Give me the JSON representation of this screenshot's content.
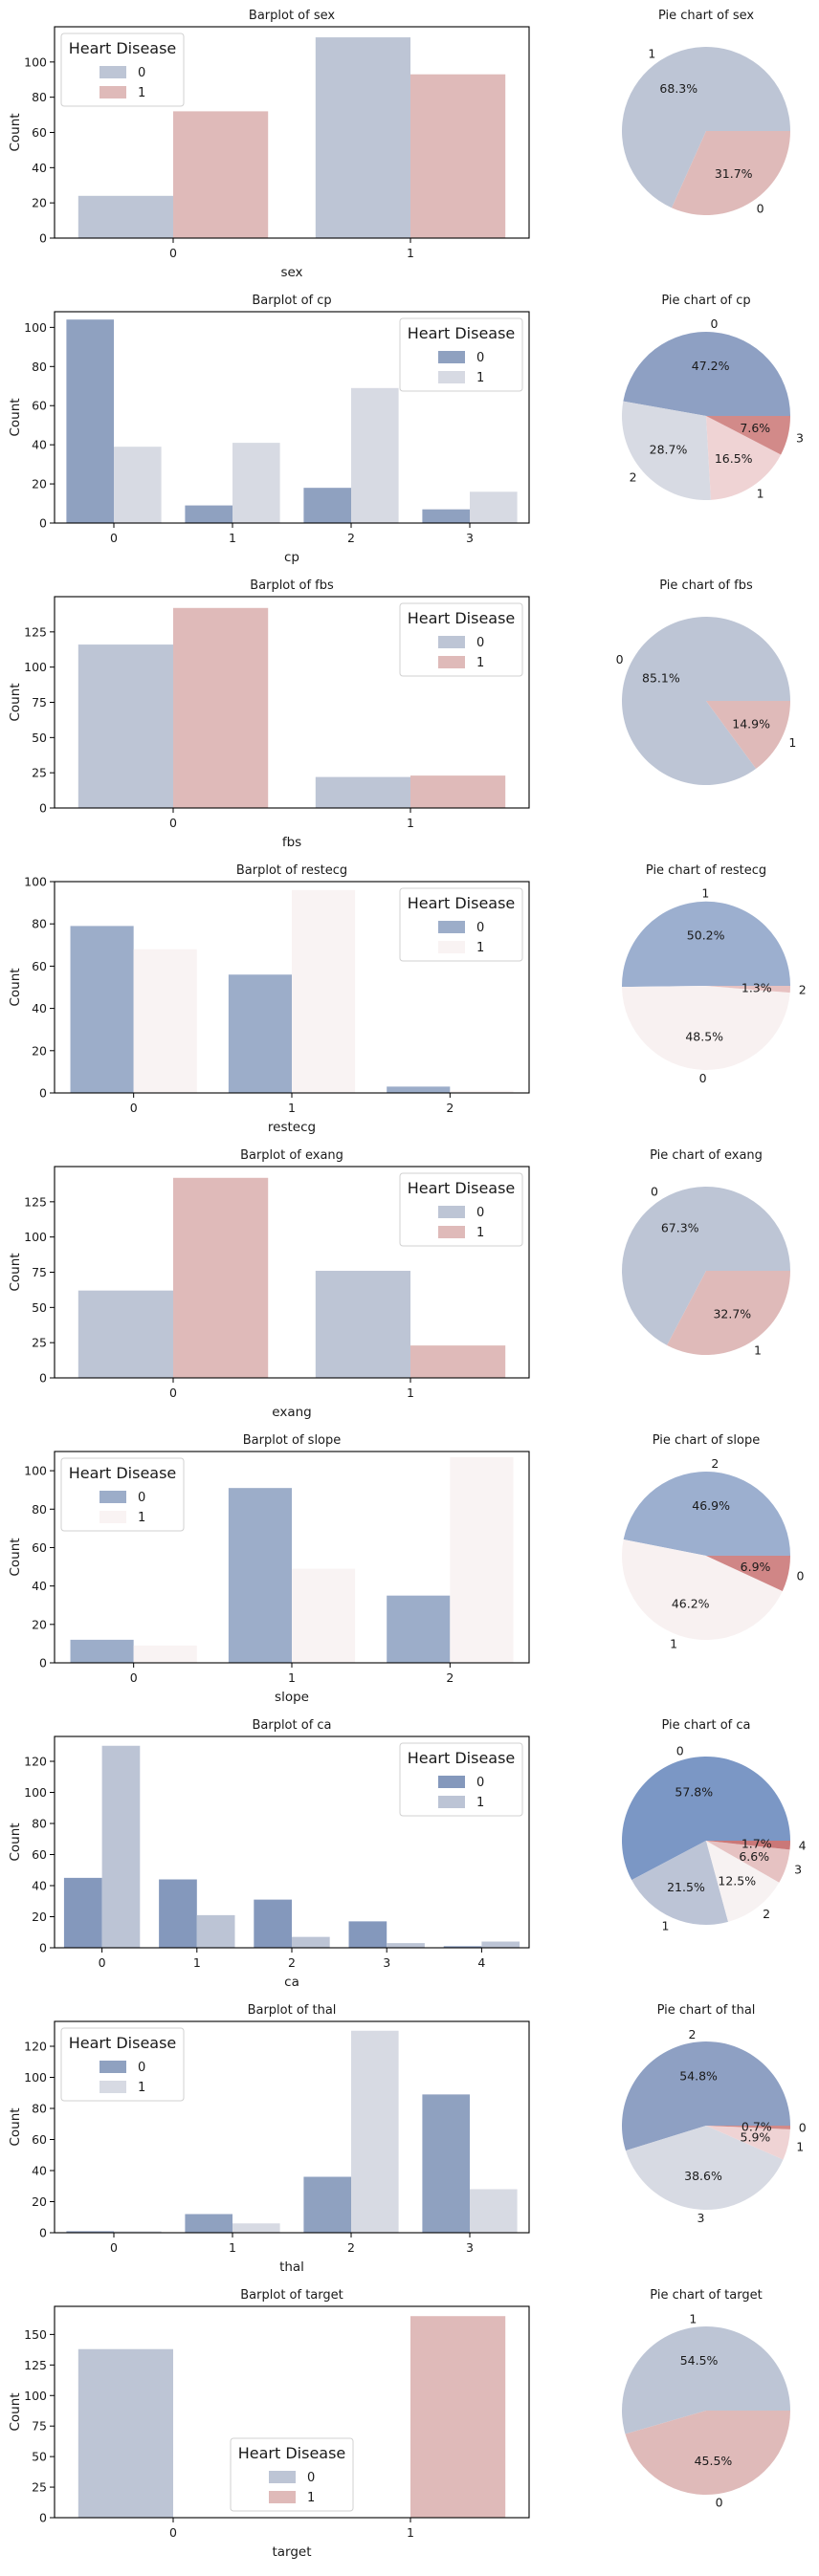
{
  "chart_data": [
    {
      "type": "bar",
      "title": "Barplot of sex",
      "xlabel": "sex",
      "ylabel": "Count",
      "categories": [
        "0",
        "1"
      ],
      "ylim": [
        0,
        120
      ],
      "yticks": [
        0,
        20,
        40,
        60,
        80,
        100
      ],
      "legend": {
        "title": "Heart Disease",
        "placement": "upper-left"
      },
      "series": [
        {
          "name": "0",
          "values": [
            24,
            114
          ],
          "color": "#bdc5d5"
        },
        {
          "name": "1",
          "values": [
            72,
            93
          ],
          "color": "#dfbab9"
        }
      ],
      "pie": {
        "type": "pie",
        "title": "Pie chart of sex",
        "slices": [
          {
            "label": "1",
            "value": 68.3,
            "pct_label": "68.3%",
            "color": "#bdc5d5"
          },
          {
            "label": "0",
            "value": 31.7,
            "pct_label": "31.7%",
            "color": "#dfbab9"
          }
        ]
      }
    },
    {
      "type": "bar",
      "title": "Barplot of cp",
      "xlabel": "cp",
      "ylabel": "Count",
      "categories": [
        "0",
        "1",
        "2",
        "3"
      ],
      "ylim": [
        0,
        108
      ],
      "yticks": [
        0,
        20,
        40,
        60,
        80,
        100
      ],
      "legend": {
        "title": "Heart Disease",
        "placement": "upper-right"
      },
      "series": [
        {
          "name": "0",
          "values": [
            104,
            9,
            18,
            7
          ],
          "color": "#8fa1c0"
        },
        {
          "name": "1",
          "values": [
            39,
            41,
            69,
            16
          ],
          "color": "#d7dae3"
        }
      ],
      "pie": {
        "type": "pie",
        "title": "Pie chart of cp",
        "slices": [
          {
            "label": "0",
            "value": 47.2,
            "pct_label": "47.2%",
            "color": "#8ea0c3"
          },
          {
            "label": "2",
            "value": 28.7,
            "pct_label": "28.7%",
            "color": "#d7dae3"
          },
          {
            "label": "1",
            "value": 16.5,
            "pct_label": "16.5%",
            "color": "#efd3d4"
          },
          {
            "label": "3",
            "value": 7.6,
            "pct_label": "7.6%",
            "color": "#d28a89"
          }
        ]
      }
    },
    {
      "type": "bar",
      "title": "Barplot of fbs",
      "xlabel": "fbs",
      "ylabel": "Count",
      "categories": [
        "0",
        "1"
      ],
      "ylim": [
        0,
        150
      ],
      "yticks": [
        0,
        25,
        50,
        75,
        100,
        125
      ],
      "legend": {
        "title": "Heart Disease",
        "placement": "upper-right"
      },
      "series": [
        {
          "name": "0",
          "values": [
            116,
            22
          ],
          "color": "#bdc5d5"
        },
        {
          "name": "1",
          "values": [
            142,
            23
          ],
          "color": "#dfbab9"
        }
      ],
      "pie": {
        "type": "pie",
        "title": "Pie chart of fbs",
        "slices": [
          {
            "label": "0",
            "value": 85.1,
            "pct_label": "85.1%",
            "color": "#bdc5d5"
          },
          {
            "label": "1",
            "value": 14.9,
            "pct_label": "14.9%",
            "color": "#dfbab9"
          }
        ]
      }
    },
    {
      "type": "bar",
      "title": "Barplot of restecg",
      "xlabel": "restecg",
      "ylabel": "Count",
      "categories": [
        "0",
        "1",
        "2"
      ],
      "ylim": [
        0,
        100
      ],
      "yticks": [
        0,
        20,
        40,
        60,
        80,
        100
      ],
      "legend": {
        "title": "Heart Disease",
        "placement": "upper-right"
      },
      "series": [
        {
          "name": "0",
          "values": [
            79,
            56,
            3
          ],
          "color": "#9cadc9"
        },
        {
          "name": "1",
          "values": [
            68,
            96,
            1
          ],
          "color": "#f9f3f3"
        }
      ],
      "pie": {
        "type": "pie",
        "title": "Pie chart of restecg",
        "slices": [
          {
            "label": "1",
            "value": 50.2,
            "pct_label": "50.2%",
            "color": "#9cafcf"
          },
          {
            "label": "0",
            "value": 48.5,
            "pct_label": "48.5%",
            "color": "#f8f1f1"
          },
          {
            "label": "2",
            "value": 1.3,
            "pct_label": "1.3%",
            "color": "#e7c1c1"
          }
        ]
      }
    },
    {
      "type": "bar",
      "title": "Barplot of exang",
      "xlabel": "exang",
      "ylabel": "Count",
      "categories": [
        "0",
        "1"
      ],
      "ylim": [
        0,
        150
      ],
      "yticks": [
        0,
        25,
        50,
        75,
        100,
        125
      ],
      "legend": {
        "title": "Heart Disease",
        "placement": "upper-right"
      },
      "series": [
        {
          "name": "0",
          "values": [
            62,
            76
          ],
          "color": "#bdc5d5"
        },
        {
          "name": "1",
          "values": [
            142,
            23
          ],
          "color": "#dfbab9"
        }
      ],
      "pie": {
        "type": "pie",
        "title": "Pie chart of exang",
        "slices": [
          {
            "label": "0",
            "value": 67.3,
            "pct_label": "67.3%",
            "color": "#bdc5d5"
          },
          {
            "label": "1",
            "value": 32.7,
            "pct_label": "32.7%",
            "color": "#dfbab9"
          }
        ]
      }
    },
    {
      "type": "bar",
      "title": "Barplot of slope",
      "xlabel": "slope",
      "ylabel": "Count",
      "categories": [
        "0",
        "1",
        "2"
      ],
      "ylim": [
        0,
        110
      ],
      "yticks": [
        0,
        20,
        40,
        60,
        80,
        100
      ],
      "legend": {
        "title": "Heart Disease",
        "placement": "upper-left"
      },
      "series": [
        {
          "name": "0",
          "values": [
            12,
            91,
            35
          ],
          "color": "#9cadc9"
        },
        {
          "name": "1",
          "values": [
            9,
            49,
            107
          ],
          "color": "#f9f3f3"
        }
      ],
      "pie": {
        "type": "pie",
        "title": "Pie chart of slope",
        "slices": [
          {
            "label": "2",
            "value": 46.9,
            "pct_label": "46.9%",
            "color": "#9cafcf"
          },
          {
            "label": "1",
            "value": 46.2,
            "pct_label": "46.2%",
            "color": "#f8f1f1"
          },
          {
            "label": "0",
            "value": 6.9,
            "pct_label": "6.9%",
            "color": "#d08686"
          }
        ]
      }
    },
    {
      "type": "bar",
      "title": "Barplot of ca",
      "xlabel": "ca",
      "ylabel": "Count",
      "categories": [
        "0",
        "1",
        "2",
        "3",
        "4"
      ],
      "ylim": [
        0,
        136
      ],
      "yticks": [
        0,
        20,
        40,
        60,
        80,
        100,
        120
      ],
      "legend": {
        "title": "Heart Disease",
        "placement": "upper-right"
      },
      "series": [
        {
          "name": "0",
          "values": [
            45,
            44,
            31,
            17,
            1
          ],
          "color": "#8498bc"
        },
        {
          "name": "1",
          "values": [
            130,
            21,
            7,
            3,
            4
          ],
          "color": "#bcc4d5"
        }
      ],
      "pie": {
        "type": "pie",
        "title": "Pie chart of ca",
        "slices": [
          {
            "label": "0",
            "value": 57.8,
            "pct_label": "57.8%",
            "color": "#7b97c5"
          },
          {
            "label": "1",
            "value": 21.5,
            "pct_label": "21.5%",
            "color": "#bcc4d6"
          },
          {
            "label": "2",
            "value": 12.5,
            "pct_label": "12.5%",
            "color": "#f7f2f2"
          },
          {
            "label": "3",
            "value": 6.6,
            "pct_label": "6.6%",
            "color": "#e6c2c2"
          },
          {
            "label": "4",
            "value": 1.7,
            "pct_label": "1.7%",
            "color": "#ca7878"
          }
        ]
      }
    },
    {
      "type": "bar",
      "title": "Barplot of thal",
      "xlabel": "thal",
      "ylabel": "Count",
      "categories": [
        "0",
        "1",
        "2",
        "3"
      ],
      "ylim": [
        0,
        136
      ],
      "yticks": [
        0,
        20,
        40,
        60,
        80,
        100,
        120
      ],
      "legend": {
        "title": "Heart Disease",
        "placement": "upper-left"
      },
      "series": [
        {
          "name": "0",
          "values": [
            1,
            12,
            36,
            89
          ],
          "color": "#8fa1c0"
        },
        {
          "name": "1",
          "values": [
            1,
            6,
            130,
            28
          ],
          "color": "#d7dae3"
        }
      ],
      "pie": {
        "type": "pie",
        "title": "Pie chart of thal",
        "slices": [
          {
            "label": "2",
            "value": 54.8,
            "pct_label": "54.8%",
            "color": "#8ea0c3"
          },
          {
            "label": "3",
            "value": 38.6,
            "pct_label": "38.6%",
            "color": "#d7dae3"
          },
          {
            "label": "1",
            "value": 5.9,
            "pct_label": "5.9%",
            "color": "#efd3d4"
          },
          {
            "label": "0",
            "value": 0.7,
            "pct_label": "0.7%",
            "color": "#d28a89"
          }
        ]
      }
    },
    {
      "type": "bar",
      "title": "Barplot of target",
      "xlabel": "target",
      "ylabel": "Count",
      "categories": [
        "0",
        "1"
      ],
      "ylim": [
        0,
        173
      ],
      "yticks": [
        0,
        25,
        50,
        75,
        100,
        125,
        150
      ],
      "legend": {
        "title": "Heart Disease",
        "placement": "lower-center"
      },
      "series": [
        {
          "name": "0",
          "values": [
            138,
            0
          ],
          "color": "#bdc5d5"
        },
        {
          "name": "1",
          "values": [
            0,
            165
          ],
          "color": "#dfbab9"
        }
      ],
      "pie": {
        "type": "pie",
        "title": "Pie chart of target",
        "slices": [
          {
            "label": "1",
            "value": 54.5,
            "pct_label": "54.5%",
            "color": "#bdc5d5"
          },
          {
            "label": "0",
            "value": 45.5,
            "pct_label": "45.5%",
            "color": "#dfbab9"
          }
        ]
      }
    }
  ]
}
